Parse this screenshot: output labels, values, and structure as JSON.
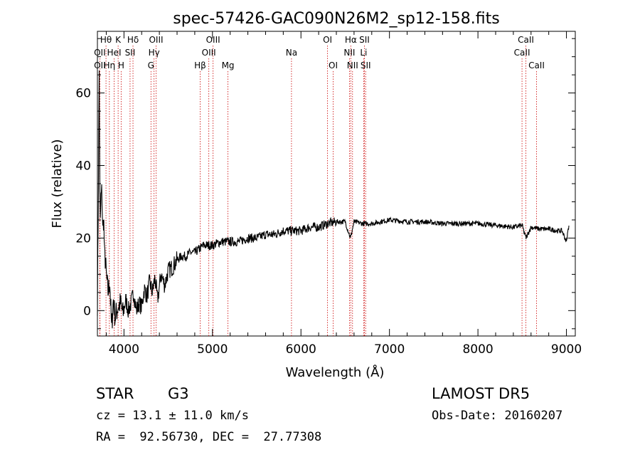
{
  "chart_data": {
    "type": "line",
    "title": "spec-57426-GAC090N26M2_sp12-158.fits",
    "xlabel": "Wavelength (Å)",
    "ylabel": "Flux (relative)",
    "xlim": [
      3700,
      9100
    ],
    "ylim": [
      -7,
      77
    ],
    "xticks": [
      4000,
      5000,
      6000,
      7000,
      8000,
      9000
    ],
    "yticks": [
      0,
      20,
      40,
      60
    ],
    "series": [
      {
        "x": [
          3700,
          3710,
          3720,
          3730,
          3740,
          3750,
          3760,
          3770,
          3780,
          3790,
          3800,
          3820,
          3840,
          3860,
          3880,
          3900,
          3930,
          3960,
          3990,
          4020,
          4050,
          4080,
          4110,
          4140,
          4170,
          4200,
          4230,
          4260,
          4290,
          4320,
          4350,
          4380,
          4420,
          4460,
          4500,
          4550,
          4600,
          4650,
          4700,
          4750,
          4800,
          4850,
          4900,
          4950,
          5000,
          5100,
          5200,
          5300,
          5400,
          5500,
          5600,
          5700,
          5800,
          5900,
          6000,
          6100,
          6200,
          6300,
          6400,
          6500,
          6560,
          6600,
          6700,
          6800,
          6900,
          7000,
          7200,
          7400,
          7600,
          7800,
          8000,
          8200,
          8400,
          8500,
          8542,
          8600,
          8700,
          8800,
          8900,
          8950,
          9000,
          9030
        ],
        "values": [
          2,
          30,
          66,
          22,
          31,
          33,
          22,
          26,
          15,
          14,
          10,
          5,
          8,
          -5,
          3,
          -2,
          1,
          2,
          -1,
          3,
          0,
          2,
          5,
          0,
          2,
          1,
          6,
          4,
          8,
          5,
          9,
          3,
          10,
          7,
          11,
          12,
          14,
          15,
          15,
          16,
          16,
          17,
          18,
          18,
          18,
          19,
          19,
          19,
          20,
          20,
          21,
          21,
          22,
          22,
          22,
          23,
          23,
          24,
          24.5,
          24.5,
          20,
          24.5,
          24,
          24,
          24.5,
          25,
          24.5,
          24.5,
          24,
          24,
          24,
          23.5,
          23,
          23.5,
          20,
          23,
          22.5,
          22.5,
          22,
          22,
          19,
          24
        ]
      }
    ],
    "lines": [
      {
        "label": "Hθ",
        "x": 3797,
        "row": 0
      },
      {
        "label": "K",
        "x": 3934,
        "row": 0
      },
      {
        "label": "Hδ",
        "x": 4102,
        "row": 0
      },
      {
        "label": "OIII",
        "x": 4363,
        "row": 0
      },
      {
        "label": "OIII",
        "x": 5007,
        "row": 0
      },
      {
        "label": "OI",
        "x": 6300,
        "row": 0
      },
      {
        "label": "Hα",
        "x": 6563,
        "row": 0
      },
      {
        "label": "SII",
        "x": 6717,
        "row": 0
      },
      {
        "label": "CaII",
        "x": 8542,
        "row": 0
      },
      {
        "label": "OII",
        "x": 3727,
        "row": 1
      },
      {
        "label": "HeI",
        "x": 3889,
        "row": 1
      },
      {
        "label": "SII",
        "x": 4069,
        "row": 1
      },
      {
        "label": "Hγ",
        "x": 4340,
        "row": 1
      },
      {
        "label": "OIII",
        "x": 4959,
        "row": 1
      },
      {
        "label": "Na",
        "x": 5893,
        "row": 1
      },
      {
        "label": "NII",
        "x": 6548,
        "row": 1
      },
      {
        "label": "Li",
        "x": 6708,
        "row": 1
      },
      {
        "label": "CaII",
        "x": 8498,
        "row": 1
      },
      {
        "label": "OII",
        "x": 3727,
        "row": 2
      },
      {
        "label": "Hη",
        "x": 3835,
        "row": 2
      },
      {
        "label": "H",
        "x": 3968,
        "row": 2
      },
      {
        "label": "G",
        "x": 4305,
        "row": 2
      },
      {
        "label": "Hβ",
        "x": 4861,
        "row": 2
      },
      {
        "label": "Mg",
        "x": 5175,
        "row": 2
      },
      {
        "label": "OI",
        "x": 6364,
        "row": 2
      },
      {
        "label": "NII",
        "x": 6583,
        "row": 2
      },
      {
        "label": "SII",
        "x": 6731,
        "row": 2
      },
      {
        "label": "CaII",
        "x": 8662,
        "row": 2
      }
    ],
    "line_color": "#cc0000",
    "spectrum_color": "#000000",
    "grid": false
  },
  "info": {
    "class": "STAR",
    "subclass": "G3",
    "survey": "LAMOST DR5",
    "cz": "cz = 13.1 ± 11.0 km/s",
    "obs_date": "Obs-Date: 20160207",
    "radec": "RA =  92.56730, DEC =  27.77308"
  }
}
